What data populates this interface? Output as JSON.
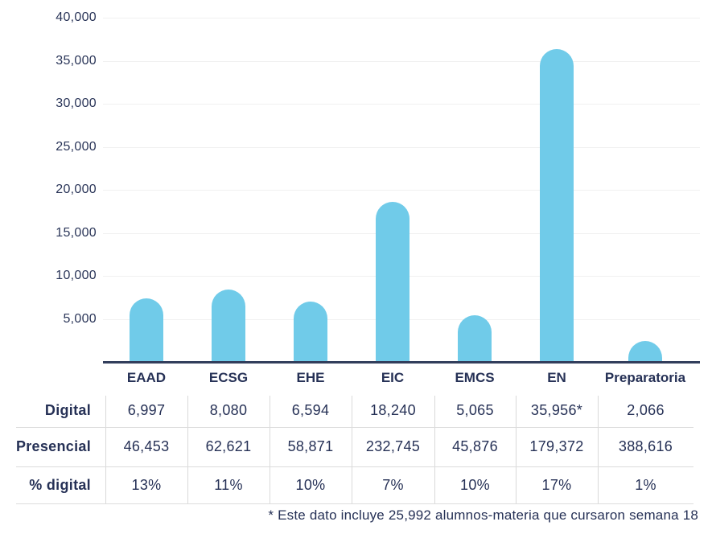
{
  "colors": {
    "bar": "#70cbe9",
    "text": "#263156",
    "axis": "#323e5c",
    "gridline": "#f1f1f1",
    "table_line": "#d9d9d9"
  },
  "chart_data": {
    "type": "bar",
    "categories": [
      "EAAD",
      "ECSG",
      "EHE",
      "EIC",
      "EMCS",
      "EN",
      "Preparatoria"
    ],
    "values": [
      6997,
      8080,
      6594,
      18240,
      5065,
      35956,
      2066
    ],
    "title": "",
    "xlabel": "",
    "ylabel": "",
    "ylim": [
      0,
      40000
    ],
    "y_ticks": [
      5000,
      10000,
      15000,
      20000,
      25000,
      30000,
      35000,
      40000
    ],
    "y_tick_labels": [
      "5,000",
      "10,000",
      "15,000",
      "20,000",
      "25,000",
      "30,000",
      "35,000",
      "40,000"
    ],
    "grid": true,
    "legend": false,
    "bar_color": "#70cbe9"
  },
  "table": {
    "rows": [
      {
        "label": "Digital",
        "values": [
          "6,997",
          "8,080",
          "6,594",
          "18,240",
          "5,065",
          "35,956*",
          "2,066"
        ]
      },
      {
        "label": "Presencial",
        "values": [
          "46,453",
          "62,621",
          "58,871",
          "232,745",
          "45,876",
          "179,372",
          "388,616"
        ]
      },
      {
        "label": "% digital",
        "values": [
          "13%",
          "11%",
          "10%",
          "7%",
          "10%",
          "17%",
          "1%"
        ]
      }
    ]
  },
  "footnote": "* Este dato incluye 25,992 alumnos-materia que cursaron semana 18"
}
